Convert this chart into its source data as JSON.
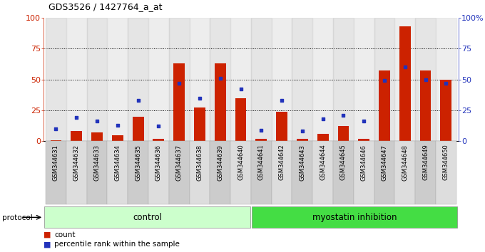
{
  "title": "GDS3526 / 1427764_a_at",
  "samples": [
    "GSM344631",
    "GSM344632",
    "GSM344633",
    "GSM344634",
    "GSM344635",
    "GSM344636",
    "GSM344637",
    "GSM344638",
    "GSM344639",
    "GSM344640",
    "GSM344641",
    "GSM344642",
    "GSM344643",
    "GSM344644",
    "GSM344645",
    "GSM344646",
    "GSM344647",
    "GSM344648",
    "GSM344649",
    "GSM344650"
  ],
  "count_values": [
    1,
    8,
    7,
    5,
    20,
    2,
    63,
    27,
    63,
    35,
    2,
    24,
    2,
    6,
    12,
    2,
    57,
    93,
    57,
    50
  ],
  "percentile_values": [
    10,
    19,
    16,
    13,
    33,
    12,
    47,
    35,
    51,
    42,
    9,
    33,
    8,
    18,
    21,
    16,
    49,
    60,
    50,
    47
  ],
  "control_count": 10,
  "myostatin_count": 10,
  "bar_color": "#cc2200",
  "dot_color": "#2233bb",
  "control_color": "#ccffcc",
  "myostatin_color": "#44dd44",
  "background_color": "#ffffff",
  "label_bg_even": "#cccccc",
  "label_bg_odd": "#dddddd",
  "protocol_label": "protocol",
  "control_label": "control",
  "myostatin_label": "myostatin inhibition",
  "legend_count": "count",
  "legend_percentile": "percentile rank within the sample",
  "ylim": [
    0,
    100
  ],
  "yticks": [
    0,
    25,
    50,
    75,
    100
  ]
}
